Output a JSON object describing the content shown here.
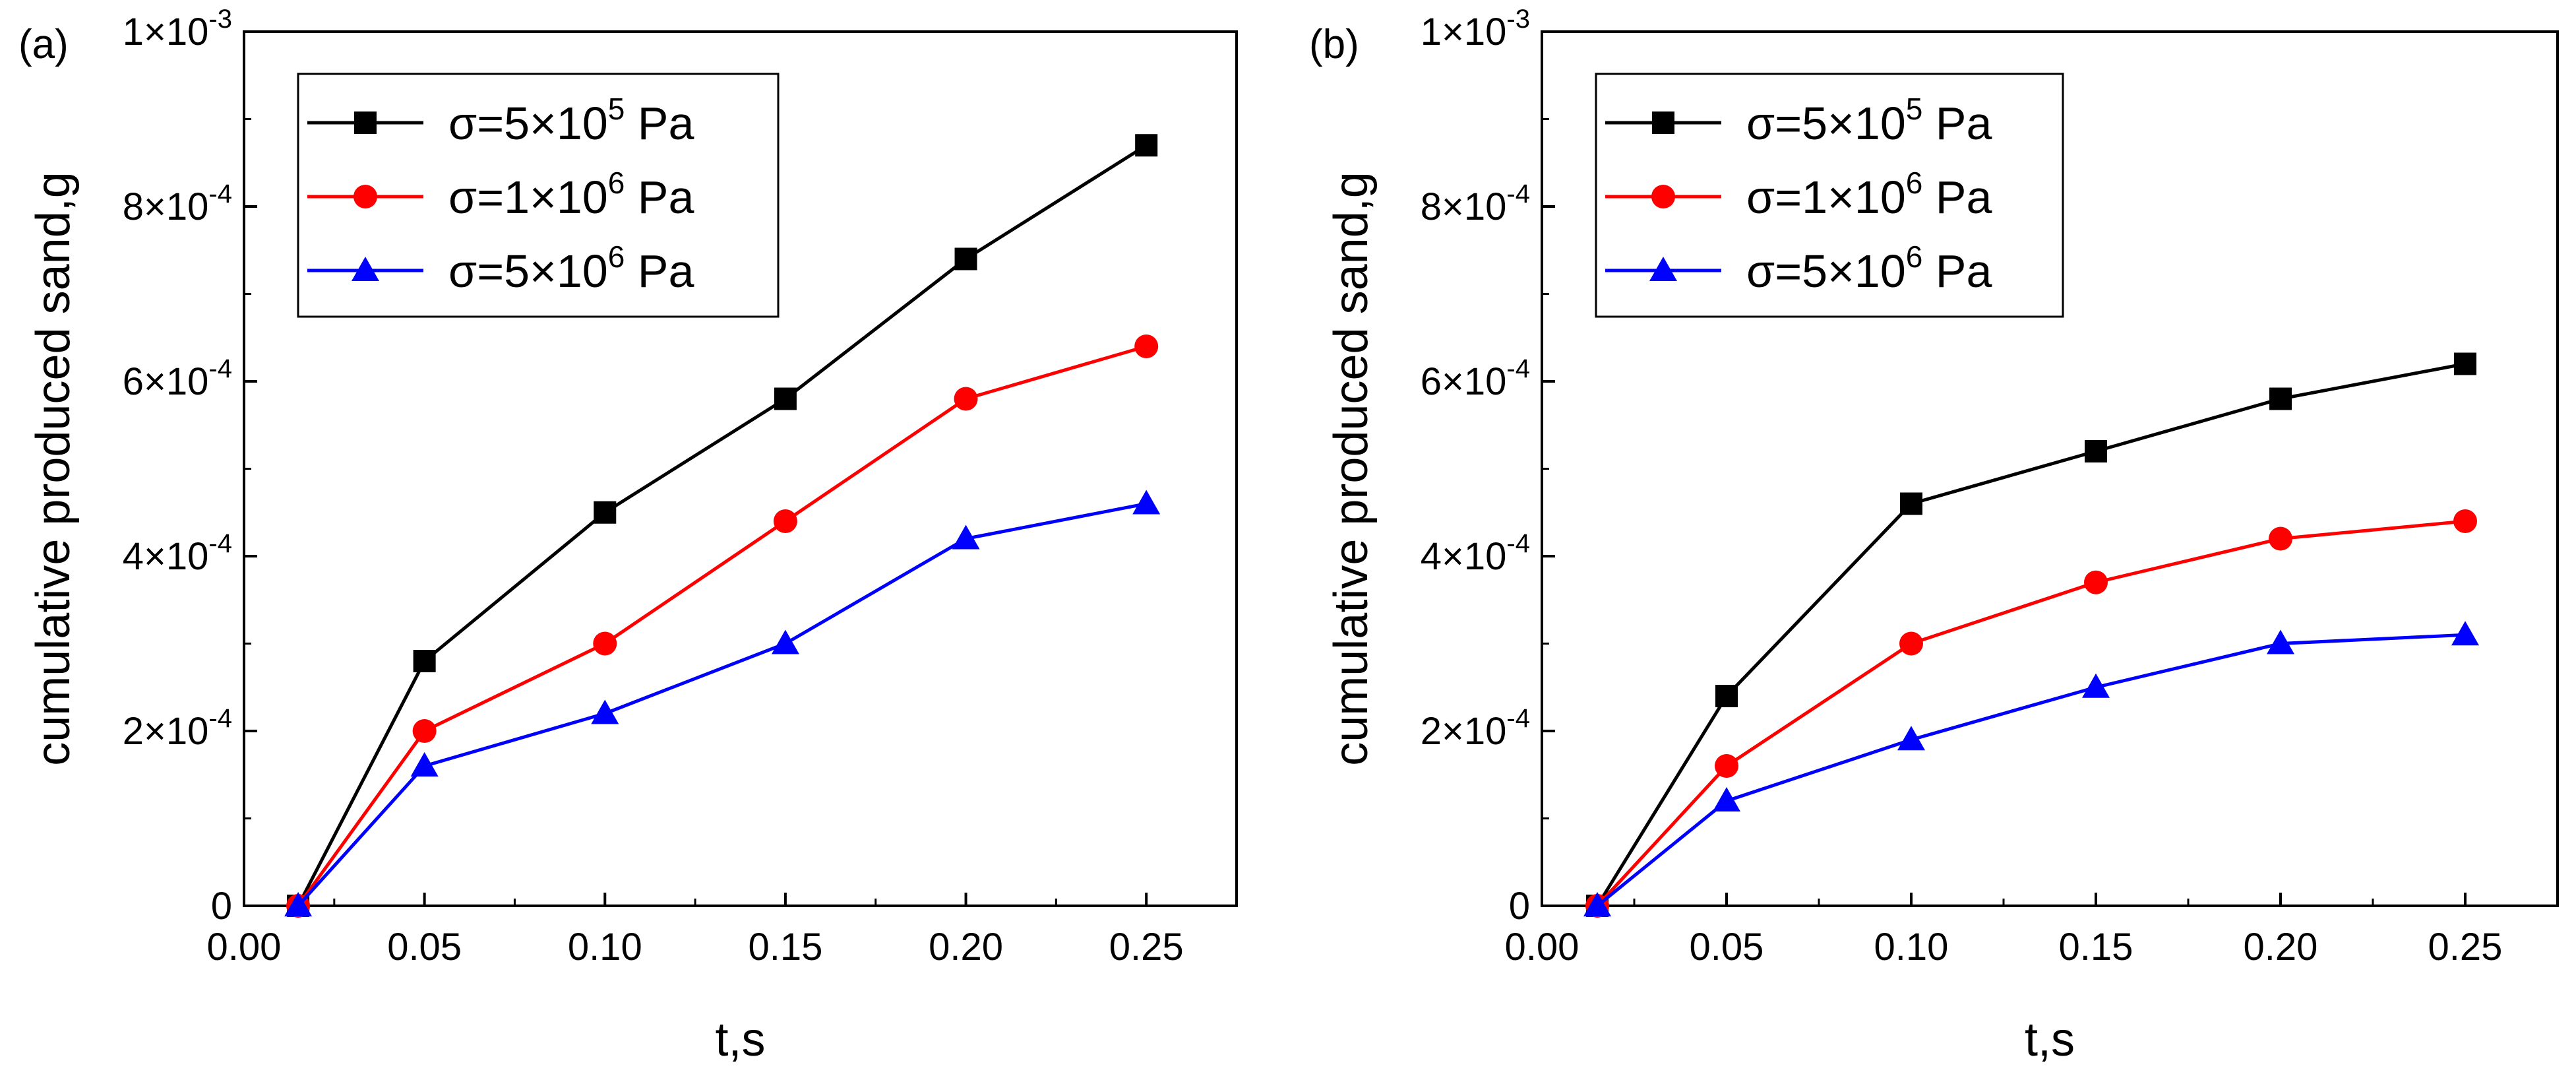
{
  "chart_data": [
    {
      "type": "line",
      "panel_label": "(a)",
      "xlabel": "t,s",
      "ylabel": "cumulative produced sand,g",
      "xlim": [
        0.0,
        0.275
      ],
      "ylim": [
        0,
        0.001
      ],
      "x_ticks": [
        0.0,
        0.05,
        0.1,
        0.15,
        0.2,
        0.25
      ],
      "x_tick_labels": [
        "0.00",
        "0.05",
        "0.10",
        "0.15",
        "0.20",
        "0.25"
      ],
      "y_ticks": [
        {
          "value": 0,
          "mant": "0",
          "exp": ""
        },
        {
          "value": 0.0002,
          "mant": "2×10",
          "exp": "-4"
        },
        {
          "value": 0.0004,
          "mant": "4×10",
          "exp": "-4"
        },
        {
          "value": 0.0006,
          "mant": "6×10",
          "exp": "-4"
        },
        {
          "value": 0.0008,
          "mant": "8×10",
          "exp": "-4"
        },
        {
          "value": 0.001,
          "mant": "1×10",
          "exp": "-3"
        }
      ],
      "grid": false,
      "legend_position": "top-left",
      "x": [
        0.015,
        0.05,
        0.1,
        0.15,
        0.2,
        0.25
      ],
      "series": [
        {
          "name_pre": "σ=5×10",
          "name_exp": "5",
          "name_post": " Pa",
          "color": "#000000",
          "marker": "square",
          "values": [
            0,
            0.00028,
            0.00045,
            0.00058,
            0.00074,
            0.00087
          ]
        },
        {
          "name_pre": "σ=1×10",
          "name_exp": "6",
          "name_post": " Pa",
          "color": "#ff0000",
          "marker": "circle",
          "values": [
            0,
            0.0002,
            0.0003,
            0.00044,
            0.00058,
            0.00064
          ]
        },
        {
          "name_pre": "σ=5×10",
          "name_exp": "6",
          "name_post": " Pa",
          "color": "#0000ff",
          "marker": "triangle",
          "values": [
            0,
            0.00016,
            0.00022,
            0.0003,
            0.00042,
            0.00046
          ]
        }
      ]
    },
    {
      "type": "line",
      "panel_label": "(b)",
      "xlabel": "t,s",
      "ylabel": "cumulative produced sand,g",
      "xlim": [
        0.0,
        0.275
      ],
      "ylim": [
        0,
        0.001
      ],
      "x_ticks": [
        0.0,
        0.05,
        0.1,
        0.15,
        0.2,
        0.25
      ],
      "x_tick_labels": [
        "0.00",
        "0.05",
        "0.10",
        "0.15",
        "0.20",
        "0.25"
      ],
      "y_ticks": [
        {
          "value": 0,
          "mant": "0",
          "exp": ""
        },
        {
          "value": 0.0002,
          "mant": "2×10",
          "exp": "-4"
        },
        {
          "value": 0.0004,
          "mant": "4×10",
          "exp": "-4"
        },
        {
          "value": 0.0006,
          "mant": "6×10",
          "exp": "-4"
        },
        {
          "value": 0.0008,
          "mant": "8×10",
          "exp": "-4"
        },
        {
          "value": 0.001,
          "mant": "1×10",
          "exp": "-3"
        }
      ],
      "grid": false,
      "legend_position": "top-left",
      "x": [
        0.015,
        0.05,
        0.1,
        0.15,
        0.2,
        0.25
      ],
      "series": [
        {
          "name_pre": "σ=5×10",
          "name_exp": "5",
          "name_post": " Pa",
          "color": "#000000",
          "marker": "square",
          "values": [
            0,
            0.00024,
            0.00046,
            0.00052,
            0.00058,
            0.00062
          ]
        },
        {
          "name_pre": "σ=1×10",
          "name_exp": "6",
          "name_post": " Pa",
          "color": "#ff0000",
          "marker": "circle",
          "values": [
            0,
            0.00016,
            0.0003,
            0.00037,
            0.00042,
            0.00044
          ]
        },
        {
          "name_pre": "σ=5×10",
          "name_exp": "6",
          "name_post": " Pa",
          "color": "#0000ff",
          "marker": "triangle",
          "values": [
            0,
            0.00012,
            0.00019,
            0.00025,
            0.0003,
            0.00031
          ]
        }
      ]
    }
  ]
}
